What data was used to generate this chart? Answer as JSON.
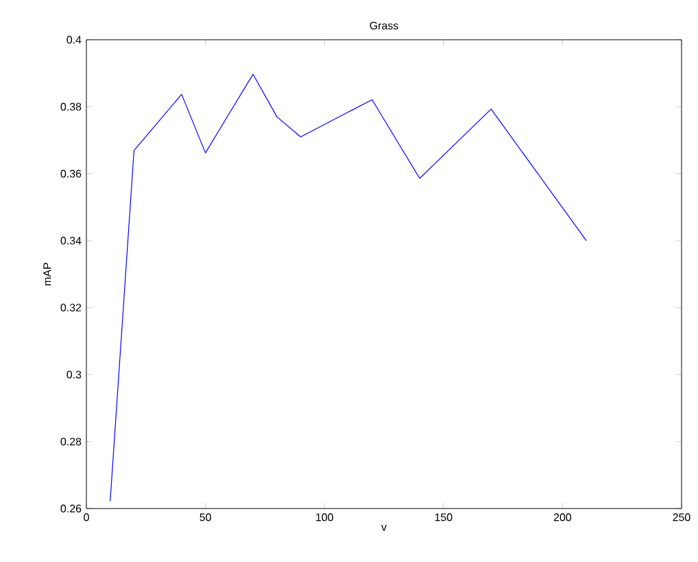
{
  "chart_data": {
    "type": "line",
    "title": "Grass",
    "xlabel": "v",
    "ylabel": "mAP",
    "x": [
      10,
      20,
      40,
      50,
      60,
      70,
      80,
      90,
      120,
      140,
      170,
      210
    ],
    "series": [
      {
        "color": "#0000ff",
        "values": [
          0.2622,
          0.3669,
          0.3837,
          0.3662,
          0.378,
          0.3897,
          0.377,
          0.371,
          0.3821,
          0.3586,
          0.3793,
          0.34
        ]
      }
    ],
    "xlim": [
      0,
      250
    ],
    "ylim": [
      0.26,
      0.4
    ],
    "xticks": [
      0,
      50,
      100,
      150,
      200,
      250
    ],
    "yticks": [
      0.26,
      0.28,
      0.3,
      0.32,
      0.34,
      0.36,
      0.38,
      0.4
    ],
    "grid": false,
    "legend": false,
    "marker": "none",
    "line_style": "solid"
  }
}
